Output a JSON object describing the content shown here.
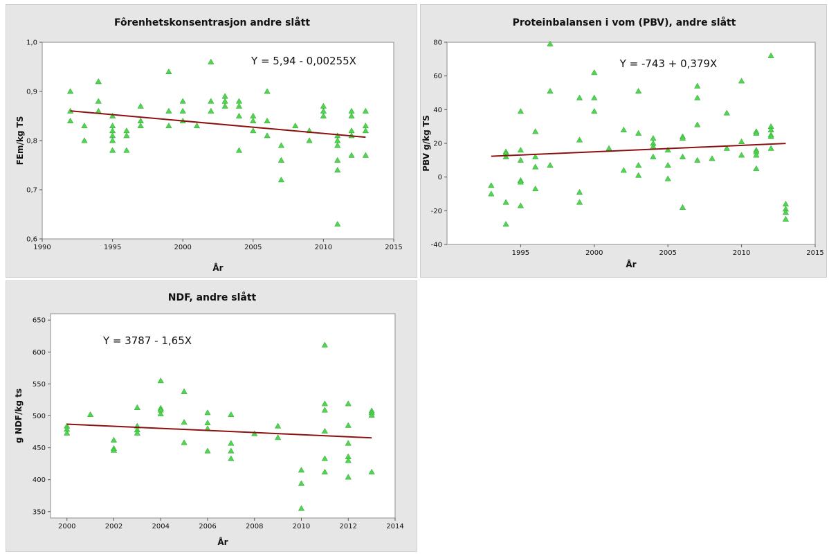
{
  "chart_data": [
    {
      "type": "scatter",
      "title": "Fôrenhetskonsentrasjon andre slått",
      "xlabel": "År",
      "ylabel": "FEm/kg TS",
      "xlim": [
        1990,
        2015
      ],
      "ylim": [
        0.6,
        1.0
      ],
      "xticks": [
        1990,
        1995,
        2000,
        2005,
        2010,
        2015
      ],
      "xtick_labels": [
        "1990",
        "1995",
        "2000",
        "2005",
        "2010",
        "2015"
      ],
      "yticks": [
        0.6,
        0.7,
        0.8,
        0.9,
        1.0
      ],
      "ytick_labels": [
        "0,6",
        "0,7",
        "0,8",
        "0,9",
        "1,0"
      ],
      "equation": "Y = 5,94 - 0,00255X",
      "fit": {
        "intercept": 5.94,
        "slope": -0.00255,
        "x_range": [
          1992,
          2013
        ]
      },
      "grid": false,
      "points": [
        [
          1992,
          0.9
        ],
        [
          1992,
          0.86
        ],
        [
          1992,
          0.84
        ],
        [
          1993,
          0.83
        ],
        [
          1993,
          0.8
        ],
        [
          1994,
          0.92
        ],
        [
          1994,
          0.92
        ],
        [
          1994,
          0.88
        ],
        [
          1994,
          0.86
        ],
        [
          1995,
          0.85
        ],
        [
          1995,
          0.83
        ],
        [
          1995,
          0.82
        ],
        [
          1995,
          0.81
        ],
        [
          1995,
          0.8
        ],
        [
          1995,
          0.78
        ],
        [
          1996,
          0.82
        ],
        [
          1996,
          0.81
        ],
        [
          1996,
          0.78
        ],
        [
          1997,
          0.87
        ],
        [
          1997,
          0.84
        ],
        [
          1997,
          0.83
        ],
        [
          1999,
          0.94
        ],
        [
          1999,
          0.86
        ],
        [
          1999,
          0.83
        ],
        [
          2000,
          0.88
        ],
        [
          2000,
          0.86
        ],
        [
          2000,
          0.84
        ],
        [
          2001,
          0.83
        ],
        [
          2002,
          0.96
        ],
        [
          2002,
          0.88
        ],
        [
          2002,
          0.86
        ],
        [
          2003,
          0.89
        ],
        [
          2003,
          0.88
        ],
        [
          2003,
          0.87
        ],
        [
          2004,
          0.88
        ],
        [
          2004,
          0.87
        ],
        [
          2004,
          0.85
        ],
        [
          2004,
          0.78
        ],
        [
          2005,
          0.85
        ],
        [
          2005,
          0.84
        ],
        [
          2005,
          0.82
        ],
        [
          2006,
          0.9
        ],
        [
          2006,
          0.84
        ],
        [
          2006,
          0.81
        ],
        [
          2007,
          0.79
        ],
        [
          2007,
          0.76
        ],
        [
          2007,
          0.72
        ],
        [
          2008,
          0.83
        ],
        [
          2009,
          0.82
        ],
        [
          2009,
          0.8
        ],
        [
          2010,
          0.87
        ],
        [
          2010,
          0.86
        ],
        [
          2010,
          0.85
        ],
        [
          2011,
          0.81
        ],
        [
          2011,
          0.8
        ],
        [
          2011,
          0.79
        ],
        [
          2011,
          0.76
        ],
        [
          2011,
          0.74
        ],
        [
          2011,
          0.63
        ],
        [
          2012,
          0.86
        ],
        [
          2012,
          0.85
        ],
        [
          2012,
          0.82
        ],
        [
          2012,
          0.81
        ],
        [
          2012,
          0.77
        ],
        [
          2013,
          0.86
        ],
        [
          2013,
          0.83
        ],
        [
          2013,
          0.82
        ],
        [
          2013,
          0.77
        ]
      ]
    },
    {
      "type": "scatter",
      "title": "Proteinbalansen i vom (PBV), andre slått",
      "xlabel": "År",
      "ylabel": "PBV g/kg TS",
      "xlim": [
        1990,
        2015
      ],
      "ylim": [
        -40,
        80
      ],
      "xticks": [
        1995,
        2000,
        2005,
        2010,
        2015
      ],
      "xtick_labels": [
        "1995",
        "2000",
        "2005",
        "2010",
        "2015"
      ],
      "yticks": [
        -40,
        -20,
        0,
        20,
        40,
        60,
        80
      ],
      "ytick_labels": [
        "-40",
        "-20",
        "0",
        "20",
        "40",
        "60",
        "80"
      ],
      "equation": "Y = -743 + 0,379X",
      "fit": {
        "intercept": -743,
        "slope": 0.379,
        "x_range": [
          1993,
          2013
        ]
      },
      "grid": false,
      "points": [
        [
          1993,
          -5
        ],
        [
          1993,
          -10
        ],
        [
          1994,
          15
        ],
        [
          1994,
          14
        ],
        [
          1994,
          12
        ],
        [
          1994,
          -15
        ],
        [
          1994,
          -28
        ],
        [
          1995,
          39
        ],
        [
          1995,
          16
        ],
        [
          1995,
          10
        ],
        [
          1995,
          -2
        ],
        [
          1995,
          -3
        ],
        [
          1995,
          -17
        ],
        [
          1996,
          27
        ],
        [
          1996,
          12
        ],
        [
          1996,
          6
        ],
        [
          1996,
          -7
        ],
        [
          1997,
          79
        ],
        [
          1997,
          51
        ],
        [
          1997,
          7
        ],
        [
          1999,
          47
        ],
        [
          1999,
          22
        ],
        [
          1999,
          -9
        ],
        [
          1999,
          -15
        ],
        [
          2000,
          62
        ],
        [
          2000,
          47
        ],
        [
          2000,
          39
        ],
        [
          2001,
          17
        ],
        [
          2002,
          28
        ],
        [
          2002,
          4
        ],
        [
          2003,
          51
        ],
        [
          2003,
          26
        ],
        [
          2003,
          7
        ],
        [
          2003,
          1
        ],
        [
          2004,
          23
        ],
        [
          2004,
          20
        ],
        [
          2004,
          18
        ],
        [
          2004,
          12
        ],
        [
          2005,
          16
        ],
        [
          2005,
          7
        ],
        [
          2005,
          -1
        ],
        [
          2006,
          24
        ],
        [
          2006,
          23
        ],
        [
          2006,
          12
        ],
        [
          2006,
          -18
        ],
        [
          2007,
          54
        ],
        [
          2007,
          47
        ],
        [
          2007,
          31
        ],
        [
          2007,
          10
        ],
        [
          2008,
          11
        ],
        [
          2009,
          38
        ],
        [
          2009,
          17
        ],
        [
          2010,
          57
        ],
        [
          2010,
          21
        ],
        [
          2010,
          13
        ],
        [
          2011,
          27
        ],
        [
          2011,
          26
        ],
        [
          2011,
          16
        ],
        [
          2011,
          15
        ],
        [
          2011,
          13
        ],
        [
          2011,
          5
        ],
        [
          2012,
          72
        ],
        [
          2012,
          30
        ],
        [
          2012,
          28
        ],
        [
          2012,
          25
        ],
        [
          2012,
          24
        ],
        [
          2012,
          17
        ],
        [
          2013,
          -16
        ],
        [
          2013,
          -19
        ],
        [
          2013,
          -21
        ],
        [
          2013,
          -25
        ]
      ]
    },
    {
      "type": "scatter",
      "title": "NDF, andre slått",
      "xlabel": "År",
      "ylabel": "g NDF/kg ts",
      "xlim": [
        1999.3,
        2014
      ],
      "ylim": [
        340,
        660
      ],
      "xticks": [
        2000,
        2002,
        2004,
        2006,
        2008,
        2010,
        2012,
        2014
      ],
      "xtick_labels": [
        "2000",
        "2002",
        "2004",
        "2006",
        "2008",
        "2010",
        "2012",
        "2014"
      ],
      "yticks": [
        350,
        400,
        450,
        500,
        550,
        600,
        650
      ],
      "ytick_labels": [
        "350",
        "400",
        "450",
        "500",
        "550",
        "600",
        "650"
      ],
      "equation": "Y = 3787 - 1,65X",
      "fit": {
        "intercept": 3787,
        "slope": -1.65,
        "x_range": [
          2000,
          2013
        ]
      },
      "grid": false,
      "points": [
        [
          2000,
          484
        ],
        [
          2000,
          479
        ],
        [
          2000,
          473
        ],
        [
          2001,
          502
        ],
        [
          2002,
          462
        ],
        [
          2002,
          449
        ],
        [
          2002,
          446
        ],
        [
          2003,
          513
        ],
        [
          2003,
          484
        ],
        [
          2003,
          478
        ],
        [
          2003,
          473
        ],
        [
          2004,
          555
        ],
        [
          2004,
          512
        ],
        [
          2004,
          509
        ],
        [
          2004,
          503
        ],
        [
          2005,
          538
        ],
        [
          2005,
          490
        ],
        [
          2005,
          458
        ],
        [
          2006,
          505
        ],
        [
          2006,
          489
        ],
        [
          2006,
          480
        ],
        [
          2006,
          445
        ],
        [
          2007,
          502
        ],
        [
          2007,
          457
        ],
        [
          2007,
          445
        ],
        [
          2007,
          433
        ],
        [
          2008,
          472
        ],
        [
          2009,
          484
        ],
        [
          2009,
          466
        ],
        [
          2010,
          415
        ],
        [
          2010,
          394
        ],
        [
          2010,
          355
        ],
        [
          2011,
          611
        ],
        [
          2011,
          519
        ],
        [
          2011,
          509
        ],
        [
          2011,
          476
        ],
        [
          2011,
          433
        ],
        [
          2011,
          412
        ],
        [
          2012,
          519
        ],
        [
          2012,
          485
        ],
        [
          2012,
          457
        ],
        [
          2012,
          436
        ],
        [
          2012,
          430
        ],
        [
          2012,
          404
        ],
        [
          2013,
          508
        ],
        [
          2013,
          505
        ],
        [
          2013,
          501
        ],
        [
          2013,
          412
        ]
      ]
    }
  ],
  "colors": {
    "marker": "#4fd64f",
    "marker_stroke": "#2e9e2e",
    "fit_line": "#8b1010",
    "panel_bg": "#e6e6e6",
    "plot_bg": "#ffffff"
  }
}
